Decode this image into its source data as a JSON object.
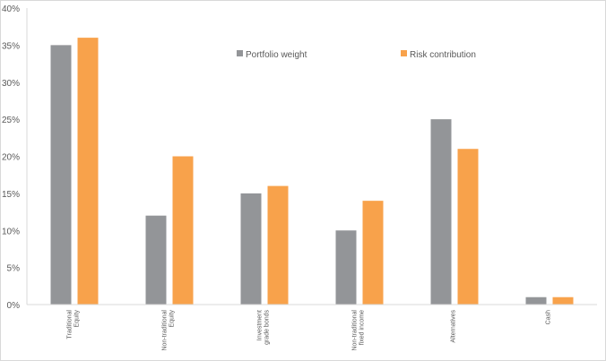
{
  "chart_data": {
    "type": "bar",
    "categories": [
      [
        "Traditional",
        "Equity"
      ],
      [
        "Non-traditional",
        "Equity"
      ],
      [
        "Investment",
        "grade bonds"
      ],
      [
        "Non-traditional",
        "fixed income"
      ],
      [
        "Alternatives"
      ],
      [
        "Cash"
      ]
    ],
    "series": [
      {
        "name": "Portfolio weight",
        "values": [
          35,
          12,
          15,
          10,
          25,
          1
        ],
        "color": "#939598"
      },
      {
        "name": "Risk contribution",
        "values": [
          36,
          20,
          16,
          14,
          21,
          1
        ],
        "color": "#f8a24b"
      }
    ],
    "y_ticks": [
      "0%",
      "5%",
      "10%",
      "15%",
      "20%",
      "25%",
      "30%",
      "35%",
      "40%"
    ],
    "ylim": [
      0,
      40
    ],
    "legend_position": "top-center",
    "grid": false,
    "axis_color": "#d9d9d9"
  }
}
